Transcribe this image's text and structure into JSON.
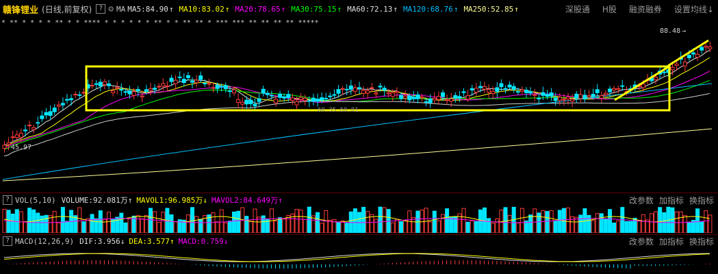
{
  "header": {
    "stock_name": "赣锋锂业",
    "period": "(日线,前复权)",
    "help_label": "?",
    "ma_label": "MA",
    "ma_items": [
      {
        "label": "MA5:84.90",
        "arrow": "↑",
        "color": "#e0e0e0"
      },
      {
        "label": "MA10:83.02",
        "arrow": "↑",
        "color": "#ffff00"
      },
      {
        "label": "MA20:78.65",
        "arrow": "↑",
        "color": "#ff00ff"
      },
      {
        "label": "MA30:75.15",
        "arrow": "↑",
        "color": "#00ff00"
      },
      {
        "label": "MA60:72.13",
        "arrow": "↑",
        "color": "#e0e0e0"
      },
      {
        "label": "MA120:68.76",
        "arrow": "↑",
        "color": "#00bfff"
      },
      {
        "label": "MA250:52.85",
        "arrow": "↑",
        "color": "#ffff99"
      }
    ],
    "links": [
      "深股通",
      "H股",
      "融资融券",
      "设置均线"
    ],
    "link_arrow": "↓"
  },
  "price_chart": {
    "high_label": "88.48",
    "low_label": "45.97",
    "mid_label": "60.35 60.01",
    "star_row": "* **        * *  * *  **      * *  ****  *    *  * *  * *  ** *  * ** **     *   ***  ***   **   **    **   **   *****"
  },
  "volume_panel": {
    "help_label": "?",
    "title": "VOL(5,10)",
    "volume": "VOLUME:92.081万",
    "volume_arrow": "↑",
    "mavol1": "MAVOL1:96.985万",
    "mavol1_arrow": "↓",
    "mavol2": "MAVOL2:84.649万",
    "mavol2_arrow": "↑",
    "actions": [
      "改参数",
      "加指标",
      "换指标"
    ]
  },
  "macd_panel": {
    "help_label": "?",
    "title": "MACD(12,26,9)",
    "dif": "DIF:3.956",
    "dif_arrow": "↓",
    "dea": "DEA:3.577",
    "dea_arrow": "↑",
    "macd": "MACD:0.759",
    "macd_arrow": "↓",
    "actions": [
      "改参数",
      "加指标",
      "换指标"
    ]
  },
  "colors": {
    "up": "#ff3b3b",
    "down": "#00e5ff",
    "box": "#ffff00"
  }
}
